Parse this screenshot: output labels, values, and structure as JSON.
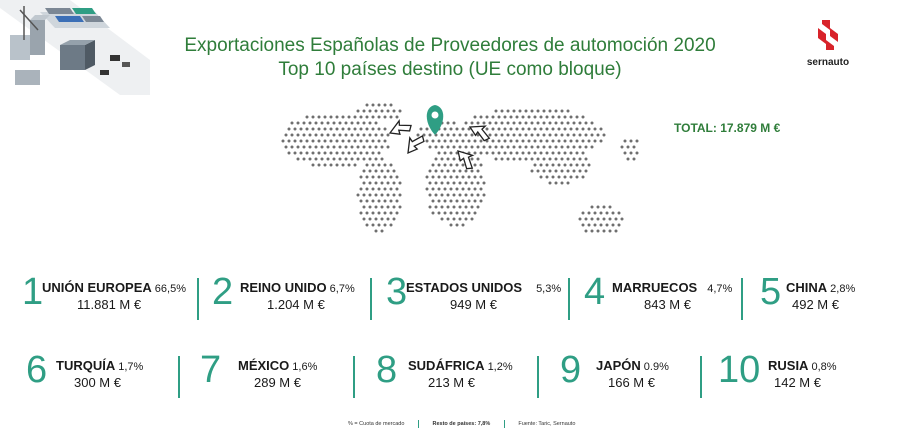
{
  "title": {
    "line1": "Exportaciones Españolas de Proveedores de automoción 2020",
    "line2": "Top 10 países destino (UE como bloque)"
  },
  "logo": {
    "name": "sernauto"
  },
  "total": "TOTAL: 17.879 M €",
  "countries": [
    {
      "rank": "1",
      "name": "UNIÓN EUROPEA",
      "share": "66,5%",
      "amount": "11.881 M €"
    },
    {
      "rank": "2",
      "name": "REINO UNIDO",
      "share": "6,7%",
      "amount": "1.204 M €"
    },
    {
      "rank": "3",
      "name": "ESTADOS UNIDOS",
      "share": "5,3%",
      "amount": "949 M €"
    },
    {
      "rank": "4",
      "name": "MARRUECOS",
      "share": "4,7%",
      "amount": "843 M €"
    },
    {
      "rank": "5",
      "name": "CHINA",
      "share": "2,8%",
      "amount": "492 M €"
    },
    {
      "rank": "6",
      "name": "TURQUÍA",
      "share": "1,7%",
      "amount": "300 M €"
    },
    {
      "rank": "7",
      "name": "MÉXICO",
      "share": "1,6%",
      "amount": "289 M €"
    },
    {
      "rank": "8",
      "name": "SUDÁFRICA",
      "share": "1,2%",
      "amount": "213 M €"
    },
    {
      "rank": "9",
      "name": "JAPÓN",
      "share": "0.9%",
      "amount": "166 M €"
    },
    {
      "rank": "10",
      "name": "RUSIA",
      "share": "0,8%",
      "amount": "142 M €"
    }
  ],
  "footer": {
    "note": "% = Cuota de mercado",
    "rest": "Resto de países: 7,8%",
    "source": "Fuente: Taric, Sernauto"
  },
  "colors": {
    "title": "#2f7d3a",
    "accent": "#2f9e84",
    "logo_red": "#d8232a"
  },
  "icons": {
    "map": "world-map-dotted",
    "pin": "location-pin-icon",
    "arrows": "export-arrow-icon",
    "scene": "port-logistics-illustration"
  }
}
